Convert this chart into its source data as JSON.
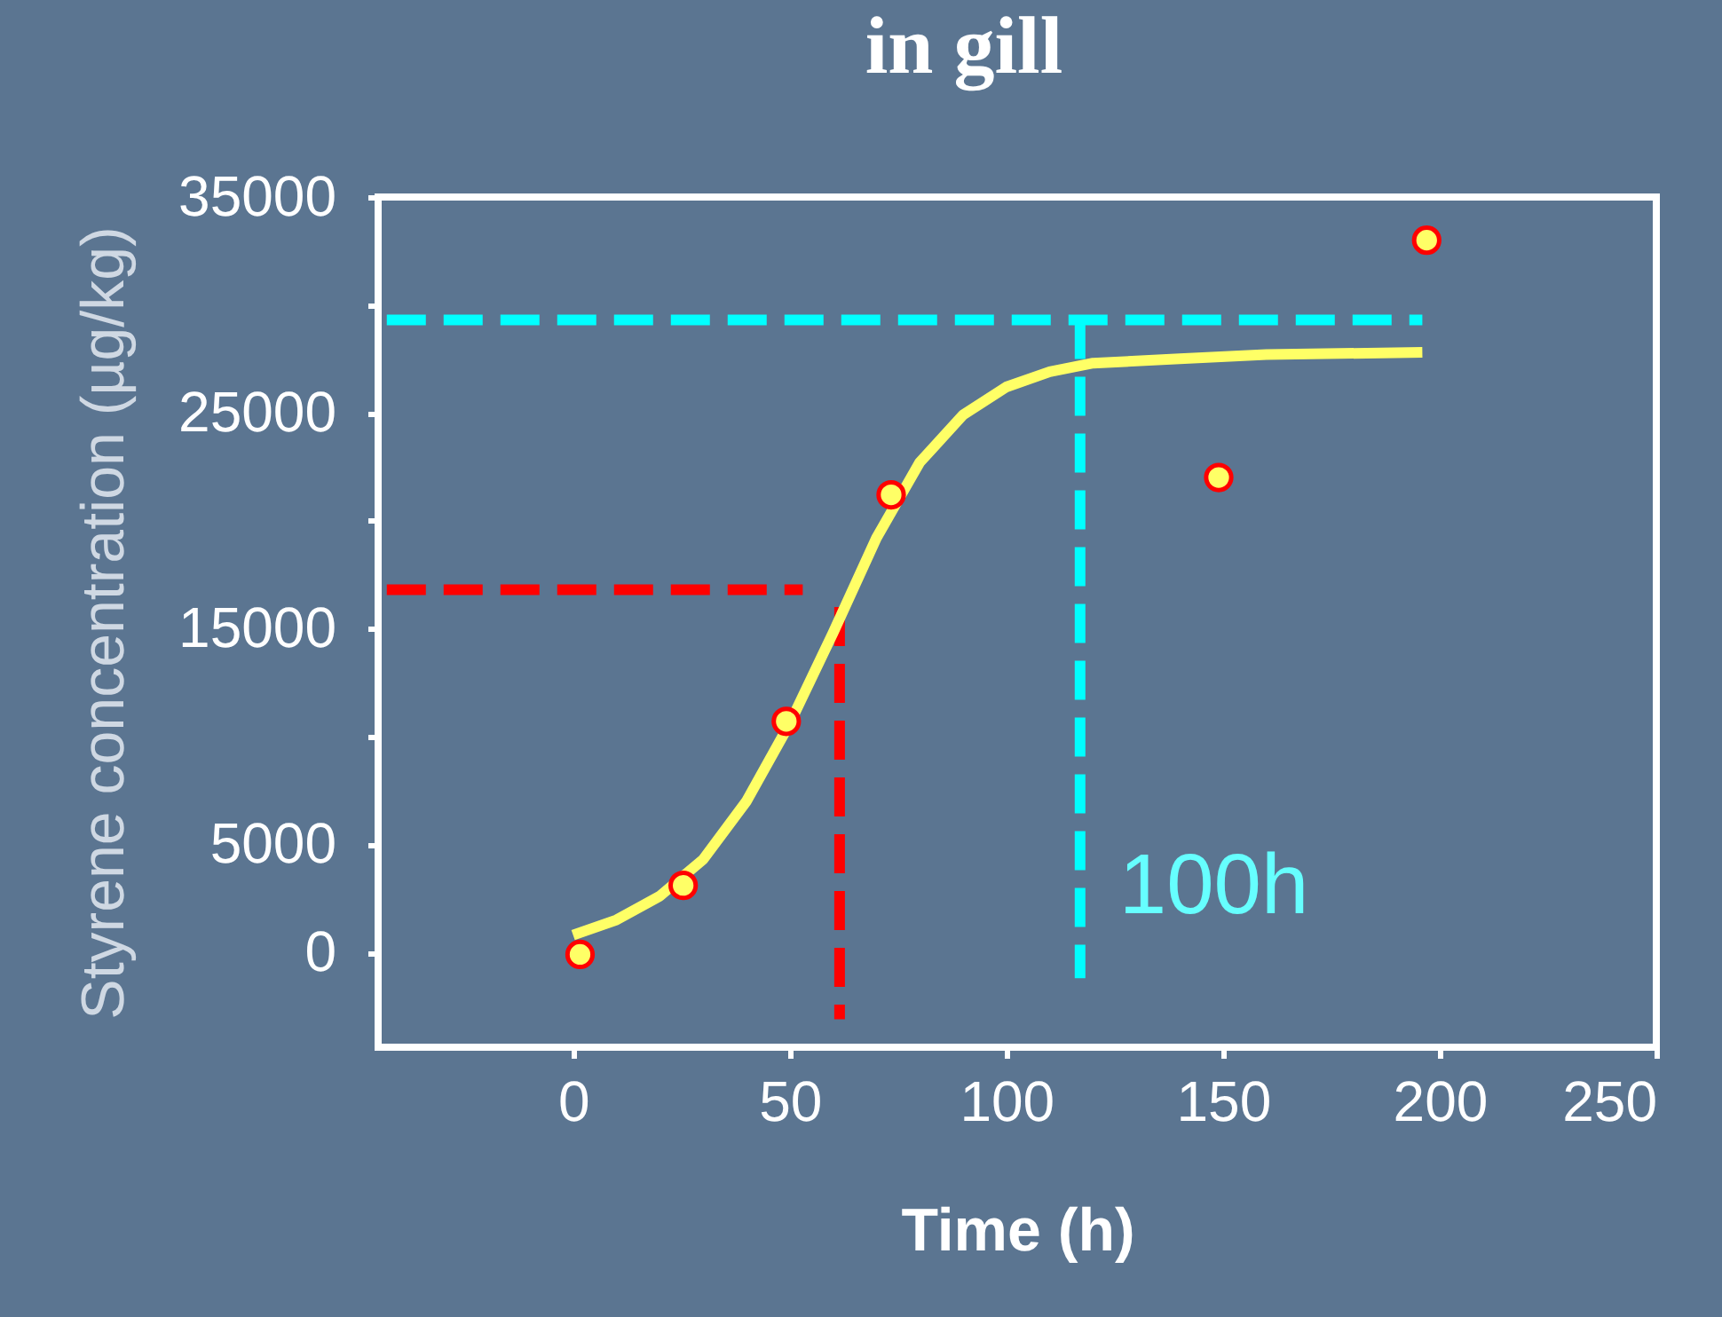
{
  "chart_data": {
    "type": "scatter",
    "title": "in gill",
    "xlabel": "Time (h)",
    "ylabel": "Styrene concentration (µg/kg)",
    "xlim": [
      -45,
      250
    ],
    "xticks": [
      0,
      50,
      100,
      150,
      200,
      250
    ],
    "ylim": [
      -4400,
      35000
    ],
    "yticks": [
      0,
      5000,
      {
        "value": 10000,
        "label": null
      },
      15000,
      {
        "value": 20000,
        "label": null
      },
      25000,
      {
        "value": 30000,
        "label": null
      },
      35000
    ],
    "grid": false,
    "annotations": [
      {
        "text": "100h",
        "x": 117,
        "y": 1000
      }
    ],
    "series": [
      {
        "type": "line",
        "color": "#ff0000",
        "line_style": "dashed",
        "x": [
          -43,
          53
        ],
        "values": [
          16800,
          16800
        ]
      },
      {
        "type": "line",
        "color": "#ff0000",
        "line_style": "dashed",
        "x": [
          61.5,
          61.5
        ],
        "values": [
          16000,
          -3100
        ]
      },
      {
        "type": "line",
        "color": "#00ffff",
        "line_style": "dashed",
        "x": [
          -43,
          196
        ],
        "values": [
          29300,
          29300
        ]
      },
      {
        "type": "line",
        "color": "#00ffff",
        "line_style": "dashed",
        "x": [
          117,
          117
        ],
        "values": [
          29300,
          -1200
        ]
      },
      {
        "type": "line",
        "color": "#ffff66",
        "line_style": "solid",
        "x": [
          0,
          10,
          20,
          30,
          40,
          50,
          60,
          70,
          80,
          90,
          100,
          110,
          120,
          140,
          160,
          196
        ],
        "values": [
          800,
          1500,
          2600,
          4300,
          7000,
          10600,
          14800,
          19200,
          22700,
          24900,
          26200,
          26900,
          27300,
          27500,
          27700,
          27800
        ]
      },
      {
        "color": "#ffff66",
        "marker": "circle",
        "x": [
          1.6,
          25.4,
          49.2,
          73.4,
          149,
          197
        ],
        "values": [
          -100,
          3100,
          10700,
          21200,
          22000,
          33000
        ]
      }
    ]
  }
}
